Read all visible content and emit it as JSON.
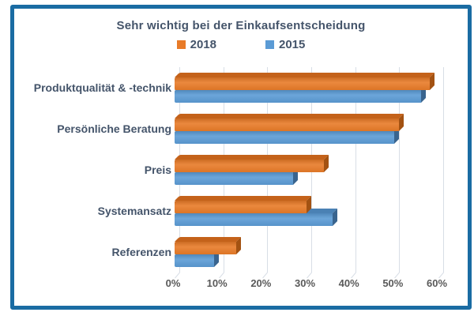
{
  "window": {
    "background": "#FFFFFF",
    "border_color": "#1A6CA3"
  },
  "chart_data": {
    "type": "bar",
    "orientation": "horizontal",
    "style": "3d-bar",
    "title": "Sehr wichtig bei der Einkaufsentscheidung",
    "categories": [
      "Produktqualität & -technik",
      "Persönliche Beratung",
      "Preis",
      "Systemansatz",
      "Referenzen"
    ],
    "series": [
      {
        "name": "2018",
        "color": "#E87B28",
        "color_top": "#C4621A",
        "color_side": "#A35212",
        "values": [
          58,
          51,
          34,
          30,
          14
        ]
      },
      {
        "name": "2015",
        "color": "#5B9BD5",
        "color_top": "#4A81B4",
        "color_side": "#39648E",
        "values": [
          56,
          50,
          27,
          36,
          9
        ]
      }
    ],
    "xlim": [
      0,
      60
    ],
    "x_tick_labels": [
      "0%",
      "10%",
      "20%",
      "30%",
      "40%",
      "50%",
      "60%"
    ],
    "legend_position": "top-center",
    "grid": true,
    "gridline_color": "#D8DEE6",
    "text_color": "#44546A",
    "tick_label_color": "#595959"
  }
}
